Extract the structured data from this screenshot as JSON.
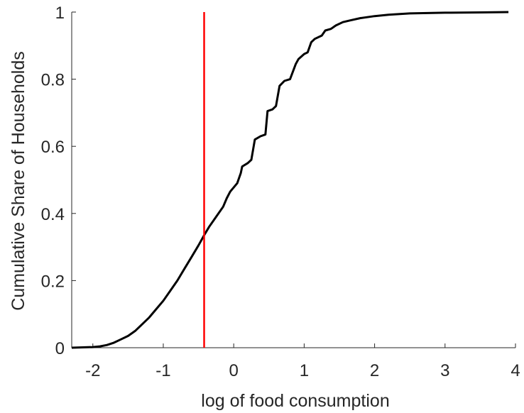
{
  "chart_data": {
    "type": "line",
    "title": "",
    "xlabel": "log of food consumption",
    "ylabel": "Cumulative Share of Households",
    "xlim": [
      -2.3,
      4.0
    ],
    "ylim": [
      0,
      1
    ],
    "xticks": [
      -2,
      -1,
      0,
      1,
      2,
      3,
      4
    ],
    "xtick_labels": [
      "-2",
      "-1",
      "0",
      "1",
      "2",
      "3",
      "4"
    ],
    "yticks": [
      0,
      0.2,
      0.4,
      0.6,
      0.8,
      1
    ],
    "ytick_labels": [
      "0",
      "0.2",
      "0.4",
      "0.6",
      "0.8",
      "1"
    ],
    "grid": false,
    "legend": "none",
    "series": [
      {
        "color": "#000000",
        "x": [
          -2.3,
          -2.0,
          -1.9,
          -1.8,
          -1.7,
          -1.6,
          -1.5,
          -1.4,
          -1.3,
          -1.2,
          -1.1,
          -1.0,
          -0.9,
          -0.8,
          -0.7,
          -0.6,
          -0.5,
          -0.42,
          -0.35,
          -0.25,
          -0.15,
          -0.1,
          -0.05,
          0.05,
          0.1,
          0.12,
          0.2,
          0.25,
          0.3,
          0.38,
          0.45,
          0.48,
          0.55,
          0.6,
          0.65,
          0.72,
          0.8,
          0.88,
          0.92,
          1.0,
          1.05,
          1.1,
          1.15,
          1.25,
          1.3,
          1.38,
          1.45,
          1.55,
          1.65,
          1.8,
          2.0,
          2.2,
          2.5,
          3.0,
          3.5,
          3.9
        ],
        "y": [
          0.0,
          0.002,
          0.004,
          0.008,
          0.015,
          0.025,
          0.035,
          0.05,
          0.07,
          0.09,
          0.115,
          0.14,
          0.17,
          0.2,
          0.235,
          0.27,
          0.305,
          0.335,
          0.36,
          0.39,
          0.42,
          0.445,
          0.465,
          0.49,
          0.52,
          0.54,
          0.55,
          0.56,
          0.62,
          0.63,
          0.635,
          0.705,
          0.71,
          0.72,
          0.78,
          0.795,
          0.8,
          0.845,
          0.86,
          0.875,
          0.88,
          0.91,
          0.92,
          0.93,
          0.945,
          0.95,
          0.96,
          0.97,
          0.975,
          0.982,
          0.988,
          0.992,
          0.996,
          0.998,
          0.999,
          1.0
        ]
      }
    ],
    "vline": {
      "x": -0.42,
      "color": "#ff0000"
    }
  }
}
